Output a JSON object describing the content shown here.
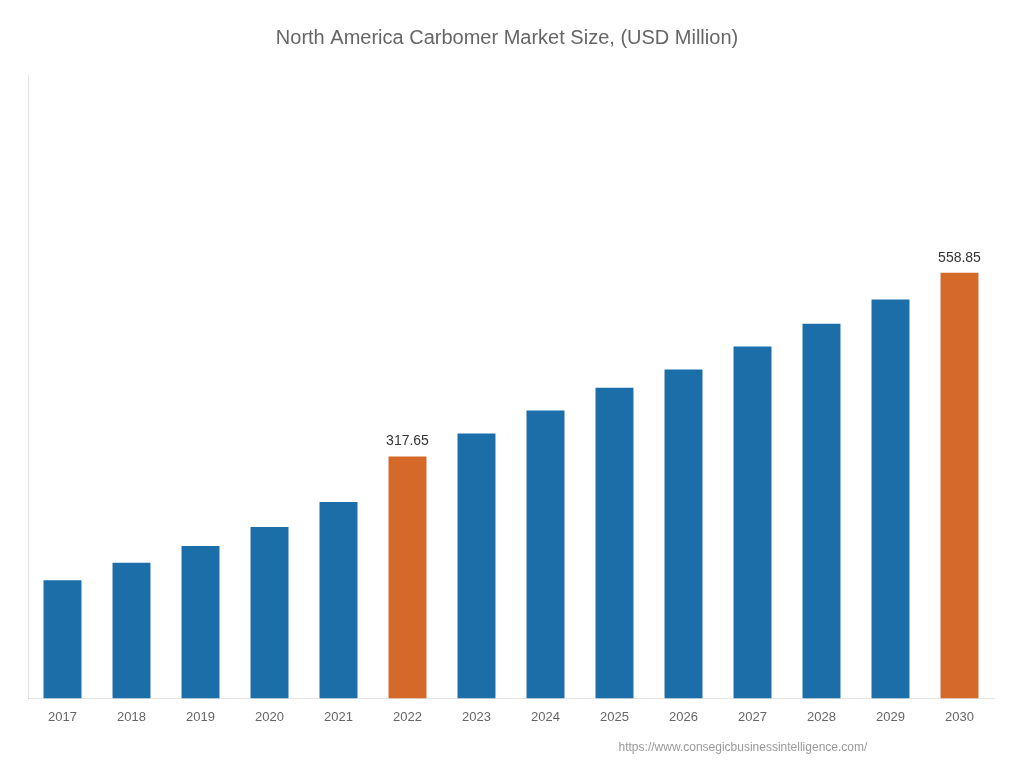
{
  "chart_data": {
    "type": "bar",
    "title": "North America Carbomer Market Size, (USD Million)",
    "categories": [
      "2017",
      "2018",
      "2019",
      "2020",
      "2021",
      "2022",
      "2023",
      "2024",
      "2025",
      "2026",
      "2027",
      "2028",
      "2029",
      "2030"
    ],
    "values": [
      155,
      178,
      200,
      225,
      258,
      317.65,
      348,
      378,
      408,
      432,
      462,
      492,
      524,
      558.85
    ],
    "colors": [
      "#1b6ea8",
      "#1b6ea8",
      "#1b6ea8",
      "#1b6ea8",
      "#1b6ea8",
      "#d4692a",
      "#1b6ea8",
      "#1b6ea8",
      "#1b6ea8",
      "#1b6ea8",
      "#1b6ea8",
      "#1b6ea8",
      "#1b6ea8",
      "#d4692a"
    ],
    "ylim": [
      0,
      820
    ],
    "grid": false,
    "tick_labels": "x",
    "annotations": [
      {
        "category": "2022",
        "value": 317.65,
        "text": "317.65"
      },
      {
        "category": "2030",
        "value": 558.85,
        "text": "558.85"
      },
      {
        "text": "https://www.consegicbusinessintelligence.com/"
      }
    ]
  }
}
